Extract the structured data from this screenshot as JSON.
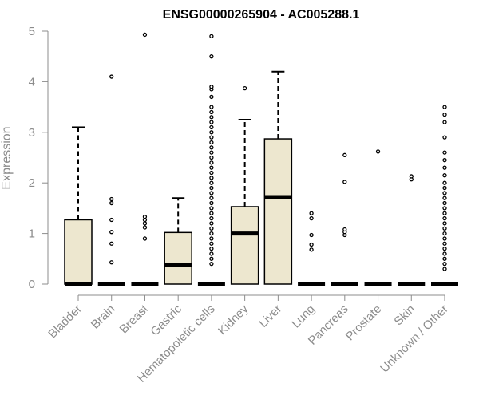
{
  "chart_data": {
    "type": "boxplot",
    "title": "ENSG00000265904 - AC005288.1",
    "xlabel": "",
    "ylabel": "Expression",
    "ylim": [
      0,
      5
    ],
    "yticks": [
      0,
      1,
      2,
      3,
      4,
      5
    ],
    "grid": false,
    "legend": "none",
    "colors": {
      "box_fill": "#ede7cf",
      "box_stroke": "#000000",
      "axis": "#8c8c8c",
      "title": "#000000"
    },
    "categories": [
      "Bladder",
      "Brain",
      "Breast",
      "Gastric",
      "Hematopoietic cells",
      "Kidney",
      "Liver",
      "Lung",
      "Pancreas",
      "Prostate",
      "Skin",
      "Unknown / Other"
    ],
    "boxes": [
      {
        "category": "Bladder",
        "min": 0,
        "q1": 0,
        "median": 0,
        "q3": 1.27,
        "max": 3.1,
        "outliers": []
      },
      {
        "category": "Brain",
        "min": 0,
        "q1": 0,
        "median": 0,
        "q3": 0,
        "max": 0,
        "outliers": [
          0.43,
          0.8,
          1.03,
          1.27,
          1.6,
          1.68,
          4.1
        ]
      },
      {
        "category": "Breast",
        "min": 0,
        "q1": 0,
        "median": 0,
        "q3": 0,
        "max": 0,
        "outliers": [
          0.9,
          1.12,
          1.2,
          1.27,
          1.33,
          4.93
        ]
      },
      {
        "category": "Gastric",
        "min": 0,
        "q1": 0,
        "median": 0.37,
        "q3": 1.02,
        "max": 1.7,
        "outliers": []
      },
      {
        "category": "Hematopoietic cells",
        "min": 0,
        "q1": 0,
        "median": 0,
        "q3": 0,
        "max": 0,
        "outliers": [
          0.4,
          0.5,
          0.6,
          0.7,
          0.8,
          0.9,
          1.0,
          1.1,
          1.2,
          1.3,
          1.4,
          1.5,
          1.6,
          1.7,
          1.8,
          1.9,
          2.0,
          2.1,
          2.2,
          2.3,
          2.4,
          2.5,
          2.6,
          2.7,
          2.8,
          2.9,
          3.0,
          3.1,
          3.2,
          3.3,
          3.4,
          3.5,
          3.7,
          3.85,
          3.9,
          4.5,
          4.9
        ]
      },
      {
        "category": "Kidney",
        "min": 0,
        "q1": 0,
        "median": 1.0,
        "q3": 1.53,
        "max": 3.25,
        "outliers": [
          3.87
        ]
      },
      {
        "category": "Liver",
        "min": 0,
        "q1": 0,
        "median": 1.72,
        "q3": 2.87,
        "max": 4.2,
        "outliers": []
      },
      {
        "category": "Lung",
        "min": 0,
        "q1": 0,
        "median": 0,
        "q3": 0,
        "max": 0,
        "outliers": [
          0.68,
          0.78,
          0.97,
          1.3,
          1.4
        ]
      },
      {
        "category": "Pancreas",
        "min": 0,
        "q1": 0,
        "median": 0,
        "q3": 0,
        "max": 0,
        "outliers": [
          0.97,
          1.03,
          1.08,
          2.02,
          2.55
        ]
      },
      {
        "category": "Prostate",
        "min": 0,
        "q1": 0,
        "median": 0,
        "q3": 0,
        "max": 0,
        "outliers": [
          2.62
        ]
      },
      {
        "category": "Skin",
        "min": 0,
        "q1": 0,
        "median": 0,
        "q3": 0,
        "max": 0,
        "outliers": [
          2.07,
          2.13
        ]
      },
      {
        "category": "Unknown / Other",
        "min": 0,
        "q1": 0,
        "median": 0,
        "q3": 0,
        "max": 0,
        "outliers": [
          0.3,
          0.4,
          0.5,
          0.6,
          0.7,
          0.8,
          0.9,
          1.0,
          1.1,
          1.2,
          1.3,
          1.4,
          1.5,
          1.6,
          1.7,
          1.8,
          1.9,
          2.0,
          2.15,
          2.3,
          2.45,
          2.6,
          2.9,
          3.2,
          3.35,
          3.5
        ]
      }
    ]
  }
}
